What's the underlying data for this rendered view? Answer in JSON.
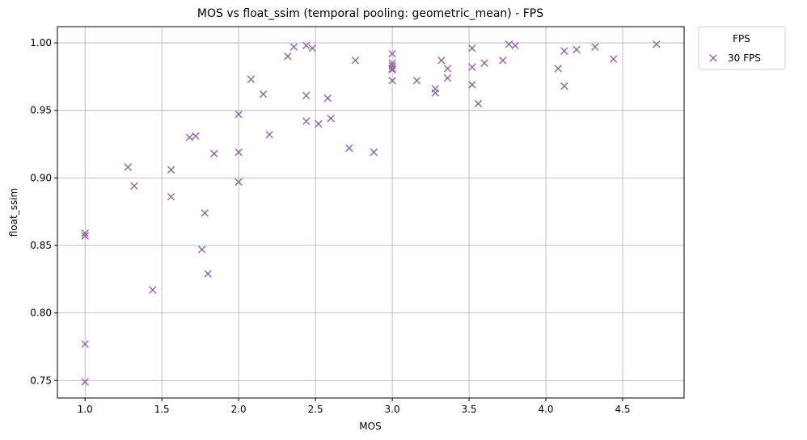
{
  "chart_data": {
    "type": "scatter",
    "title": "MOS vs float_ssim (temporal pooling: geometric_mean) - FPS",
    "xlabel": "MOS",
    "ylabel": "float_ssim",
    "xlim": [
      0.82,
      4.9
    ],
    "ylim": [
      0.737,
      1.012
    ],
    "xticks": [
      1.0,
      1.5,
      2.0,
      2.5,
      3.0,
      3.5,
      4.0,
      4.5
    ],
    "xtick_labels": [
      "1.0",
      "1.5",
      "2.0",
      "2.5",
      "3.0",
      "3.5",
      "4.0",
      "4.5"
    ],
    "yticks": [
      0.75,
      0.8,
      0.85,
      0.9,
      0.95,
      1.0
    ],
    "ytick_labels": [
      "0.75",
      "0.80",
      "0.85",
      "0.90",
      "0.95",
      "1.00"
    ],
    "grid": true,
    "marker": "x",
    "color": "#8e5c9e",
    "legend": {
      "title": "FPS",
      "placement": "outside-top-right"
    },
    "series": [
      {
        "name": "30 FPS",
        "points": [
          [
            1.0,
            0.859
          ],
          [
            1.0,
            0.857
          ],
          [
            1.0,
            0.777
          ],
          [
            1.0,
            0.749
          ],
          [
            1.28,
            0.908
          ],
          [
            1.32,
            0.894
          ],
          [
            1.44,
            0.817
          ],
          [
            1.56,
            0.906
          ],
          [
            1.56,
            0.886
          ],
          [
            1.68,
            0.93
          ],
          [
            1.72,
            0.931
          ],
          [
            1.76,
            0.847
          ],
          [
            1.78,
            0.874
          ],
          [
            1.8,
            0.829
          ],
          [
            1.84,
            0.918
          ],
          [
            2.0,
            0.947
          ],
          [
            2.0,
            0.919
          ],
          [
            2.0,
            0.897
          ],
          [
            2.08,
            0.973
          ],
          [
            2.16,
            0.962
          ],
          [
            2.2,
            0.932
          ],
          [
            2.32,
            0.99
          ],
          [
            2.36,
            0.997
          ],
          [
            2.44,
            0.998
          ],
          [
            2.44,
            0.961
          ],
          [
            2.44,
            0.942
          ],
          [
            2.48,
            0.996
          ],
          [
            2.52,
            0.94
          ],
          [
            2.58,
            0.959
          ],
          [
            2.6,
            0.944
          ],
          [
            2.72,
            0.922
          ],
          [
            2.76,
            0.987
          ],
          [
            2.88,
            0.919
          ],
          [
            3.0,
            0.992
          ],
          [
            3.0,
            0.985
          ],
          [
            3.0,
            0.983
          ],
          [
            3.0,
            0.981
          ],
          [
            3.0,
            0.98
          ],
          [
            3.0,
            0.972
          ],
          [
            3.16,
            0.972
          ],
          [
            3.28,
            0.966
          ],
          [
            3.28,
            0.963
          ],
          [
            3.32,
            0.987
          ],
          [
            3.36,
            0.981
          ],
          [
            3.36,
            0.974
          ],
          [
            3.52,
            0.996
          ],
          [
            3.52,
            0.982
          ],
          [
            3.52,
            0.969
          ],
          [
            3.56,
            0.955
          ],
          [
            3.6,
            0.985
          ],
          [
            3.72,
            0.987
          ],
          [
            3.76,
            0.999
          ],
          [
            3.8,
            0.998
          ],
          [
            4.08,
            0.981
          ],
          [
            4.12,
            0.994
          ],
          [
            4.12,
            0.968
          ],
          [
            4.2,
            0.995
          ],
          [
            4.32,
            0.997
          ],
          [
            4.44,
            0.988
          ],
          [
            4.72,
            0.999
          ]
        ]
      }
    ]
  }
}
